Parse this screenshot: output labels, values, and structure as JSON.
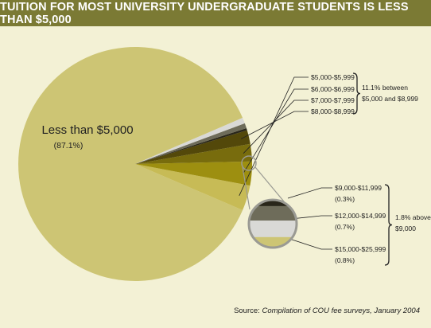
{
  "title": "TUITION FOR MOST UNIVERSITY UNDERGRADUATE STUDENTS IS LESS THAN $5,000",
  "source": {
    "prefix": "Source: ",
    "text": "Compilation of COU fee surveys, January 2004"
  },
  "group_labels": {
    "middle": [
      "11.1% between",
      "$5,000 and $8,999"
    ],
    "upper": [
      "1.8% above",
      "$9,000"
    ]
  },
  "colors": {
    "background": "#f3f1d5",
    "title_bar": "#7b7a34",
    "main_slice": "#cdc574"
  },
  "chart_data": {
    "type": "pie",
    "title": "TUITION FOR MOST UNIVERSITY UNDERGRADUATE STUDENTS IS LESS THAN $5,000",
    "slices": [
      {
        "label": "Less than $5,000",
        "value_text": "(87.1%)",
        "value": 87.1,
        "color": "#cdc574"
      },
      {
        "label": "$5,000-$5,999",
        "value": 3.5,
        "color": "#c7bb56"
      },
      {
        "label": "$6,000-$6,999",
        "value": 3.3,
        "color": "#9d8f10"
      },
      {
        "label": "$7,000-$7,999",
        "value": 2.4,
        "color": "#786c0d"
      },
      {
        "label": "$8,000-$8,999",
        "value": 1.9,
        "color": "#53480a"
      },
      {
        "label": "$9,000-$11,999",
        "value_text": "(0.3%)",
        "value": 0.3,
        "color": "#29261a"
      },
      {
        "label": "$12,000-$14,999",
        "value_text": "(0.7%)",
        "value": 0.7,
        "color": "#6e6c5a"
      },
      {
        "label": "$15,000-$25,999",
        "value_text": "(0.8%)",
        "value": 0.8,
        "color": "#d9d9d6"
      }
    ],
    "groups": [
      {
        "label": "11.1% between $5,000 and $8,999",
        "members": [
          "$5,000-$5,999",
          "$6,000-$6,999",
          "$7,000-$7,999",
          "$8,000-$8,999"
        ]
      },
      {
        "label": "1.8% above $9,000",
        "members": [
          "$9,000-$11,999",
          "$12,000-$14,999",
          "$15,000-$25,999"
        ]
      }
    ],
    "legend": "none"
  }
}
